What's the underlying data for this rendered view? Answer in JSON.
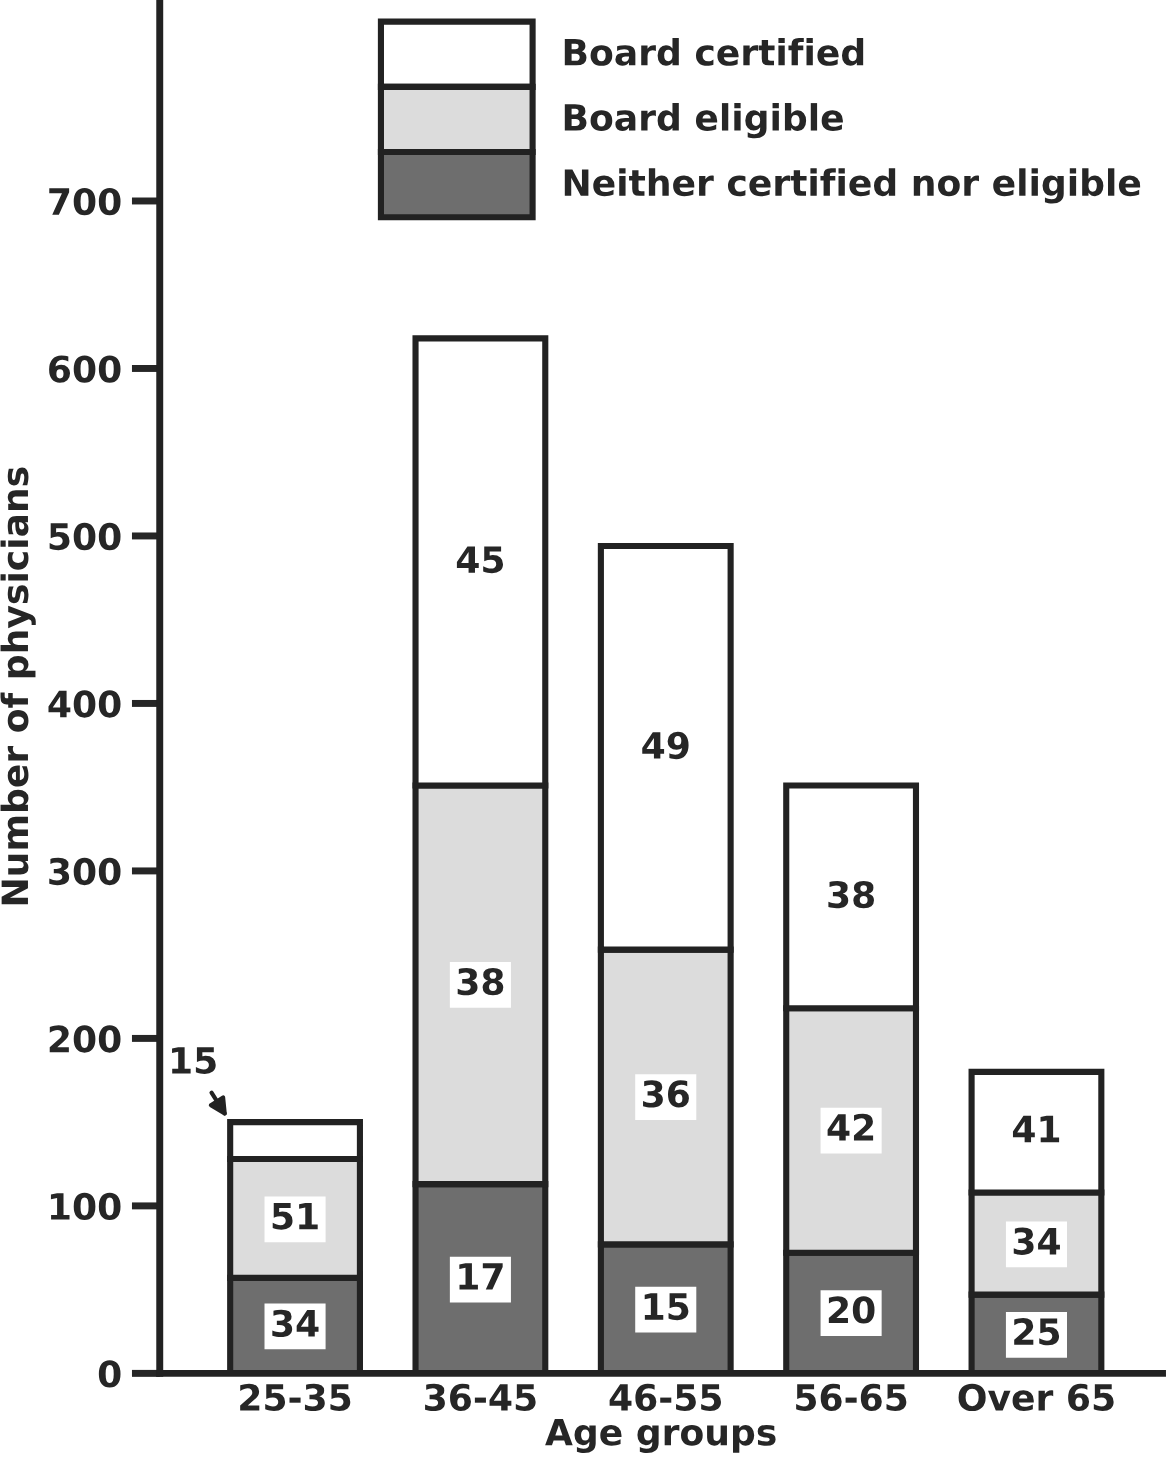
{
  "chart_data": {
    "type": "bar",
    "stacked": true,
    "xlabel": "Age groups",
    "ylabel": "Number of physicians",
    "categories": [
      "25-35",
      "36-45",
      "46-55",
      "56-65",
      "Over 65"
    ],
    "series": [
      {
        "name": "Neither certified nor eligible",
        "color": "#6e6e6e",
        "values": [
          57,
          113,
          77,
          72,
          47
        ]
      },
      {
        "name": "Board eligible",
        "color": "#dcdcdc",
        "values": [
          71,
          238,
          176,
          146,
          61
        ]
      },
      {
        "name": "Board certified",
        "color": "#ffffff",
        "values": [
          22,
          267,
          241,
          133,
          72
        ]
      }
    ],
    "annotations": [
      {
        "text": "34",
        "x": "25-35",
        "y": 28
      },
      {
        "text": "51",
        "x": "25-35",
        "y": 92
      },
      {
        "text": "15",
        "x": "25-35",
        "y": 150
      },
      {
        "text": "17",
        "x": "36-45",
        "y": 56
      },
      {
        "text": "38",
        "x": "36-45",
        "y": 232
      },
      {
        "text": "45",
        "x": "36-45",
        "y": 484
      },
      {
        "text": "15",
        "x": "46-55",
        "y": 38
      },
      {
        "text": "36",
        "x": "46-55",
        "y": 165
      },
      {
        "text": "49",
        "x": "46-55",
        "y": 373
      },
      {
        "text": "20",
        "x": "56-65",
        "y": 36
      },
      {
        "text": "42",
        "x": "56-65",
        "y": 145
      },
      {
        "text": "38",
        "x": "56-65",
        "y": 284
      },
      {
        "text": "25",
        "x": "Over 65",
        "y": 23
      },
      {
        "text": "34",
        "x": "Over 65",
        "y": 77
      },
      {
        "text": "41",
        "x": "Over 65",
        "y": 144
      }
    ],
    "ylim": [
      0,
      820
    ],
    "yticks": [
      0,
      100,
      200,
      300,
      400,
      500,
      600,
      700
    ],
    "grid": false,
    "legend": "top"
  }
}
